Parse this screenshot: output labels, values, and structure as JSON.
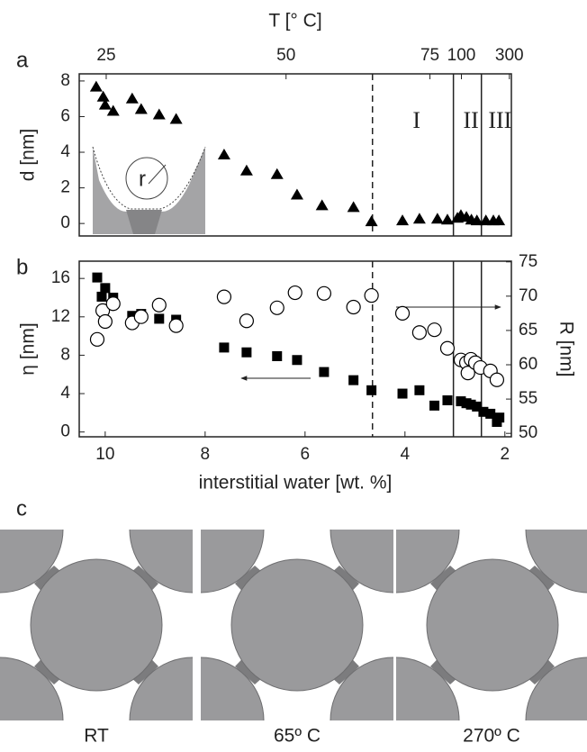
{
  "chart_data": [
    {
      "type": "scatter",
      "panel": "a",
      "x2label": "T [° C]",
      "ylabel": "d [nm]",
      "x": [
        10.18,
        10.04,
        10.0,
        9.84,
        9.46,
        9.28,
        8.92,
        8.58,
        7.62,
        7.17,
        6.56,
        6.16,
        5.66,
        5.03,
        4.67,
        4.05,
        3.71,
        3.35,
        3.15,
        2.95,
        2.88,
        2.77,
        2.67,
        2.56,
        2.38,
        2.23,
        2.12
      ],
      "series": [
        {
          "marker": "triangle",
          "color": "#000000",
          "values": [
            7.66,
            7.1,
            6.65,
            6.3,
            7.0,
            6.4,
            6.1,
            5.85,
            3.85,
            2.95,
            2.75,
            1.6,
            1.0,
            0.9,
            0.1,
            0.15,
            0.25,
            0.25,
            0.2,
            0.3,
            0.45,
            0.35,
            0.2,
            0.15,
            0.15,
            0.15,
            0.15
          ]
        }
      ],
      "xlim": [
        10.52,
        1.87
      ],
      "ylim": [
        -0.7,
        8.4
      ],
      "yticks": [
        0,
        2,
        4,
        6,
        8
      ],
      "x2ticks": [
        {
          "value": 9.98,
          "label": "25"
        },
        {
          "value": 6.38,
          "label": "50"
        },
        {
          "value": 3.5,
          "label": "75"
        },
        {
          "value": 2.87,
          "label": "100"
        },
        {
          "value": 1.91,
          "label": "300"
        }
      ],
      "vlines": [
        {
          "x": 4.65,
          "style": "dashed"
        },
        {
          "x": 3.03,
          "style": "solid"
        },
        {
          "x": 2.47,
          "style": "solid"
        }
      ],
      "regions": [
        "I",
        "II",
        "III"
      ],
      "inset_label": "r"
    },
    {
      "type": "scatter",
      "panel": "b",
      "xlabel": "interstitial water [wt. %]",
      "ylabel": "η [nm]",
      "y2label": "R [nm]",
      "x": [
        10.16,
        10.07,
        10.0,
        9.84,
        9.46,
        9.28,
        8.92,
        8.58,
        7.62,
        7.17,
        6.56,
        6.16,
        5.62,
        5.03,
        4.67,
        4.05,
        3.71,
        3.41,
        3.15,
        2.88,
        2.77,
        2.68,
        2.56,
        2.43,
        2.29,
        2.16,
        2.11
      ],
      "series": [
        {
          "marker": "square",
          "color": "#000000",
          "axis": "y",
          "values": [
            16.1,
            14.1,
            15.0,
            14.0,
            12.1,
            12.3,
            11.8,
            11.7,
            8.8,
            8.3,
            7.9,
            7.5,
            6.25,
            5.4,
            4.35,
            4.0,
            4.35,
            2.75,
            3.3,
            3.2,
            3.0,
            2.85,
            2.65,
            2.1,
            1.9,
            1.05,
            1.5
          ]
        },
        {
          "marker": "circle",
          "color": "#000000",
          "axis": "y2",
          "x": [
            10.16,
            10.05,
            10.0,
            9.84,
            9.46,
            9.28,
            8.92,
            8.58,
            7.62,
            7.17,
            6.56,
            6.2,
            5.62,
            5.03,
            4.67,
            4.05,
            3.71,
            3.41,
            3.15,
            2.88,
            2.77,
            2.74,
            2.68,
            2.59,
            2.49,
            2.29,
            2.16
          ],
          "values": [
            63.7,
            67.9,
            66.3,
            68.9,
            66.1,
            67.0,
            68.7,
            65.7,
            69.9,
            66.4,
            68.3,
            70.5,
            70.4,
            68.4,
            70.1,
            67.5,
            64.7,
            65.1,
            62.4,
            60.7,
            60.3,
            58.8,
            60.8,
            60.3,
            59.6,
            59.1,
            57.8
          ]
        }
      ],
      "xlim": [
        10.52,
        1.87
      ],
      "xticks": [
        10,
        8,
        6,
        4,
        2
      ],
      "ylim": [
        -0.5,
        17.8
      ],
      "yticks": [
        0,
        4,
        8,
        12,
        16
      ],
      "y2lim": [
        49.5,
        75.1
      ],
      "y2ticks": [
        50,
        55,
        60,
        65,
        70,
        75
      ],
      "vlines": [
        {
          "x": 4.65,
          "style": "dashed"
        },
        {
          "x": 3.03,
          "style": "solid"
        },
        {
          "x": 2.47,
          "style": "solid"
        }
      ]
    }
  ],
  "panel_c": {
    "label": "c",
    "captions": [
      "RT",
      "65º C",
      "270º C"
    ]
  }
}
